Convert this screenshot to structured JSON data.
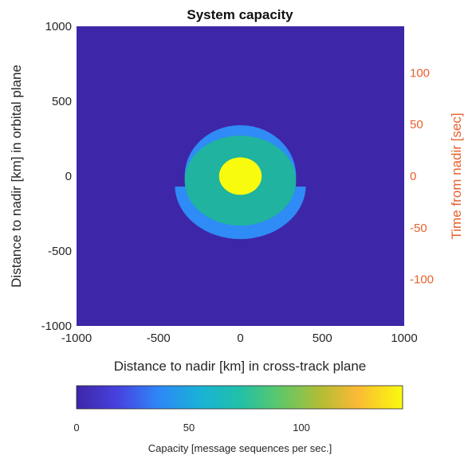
{
  "chart_data": {
    "type": "heatmap",
    "title": "System capacity",
    "xlabel": "Distance to nadir [km] in cross-track plane",
    "ylabel": "Distance to nadir [km] in orbital plane",
    "y2label": "Time from nadir [sec]",
    "xlim": [
      -1000,
      1000
    ],
    "ylim": [
      -1000,
      1000
    ],
    "y2lim": [
      -145,
      145
    ],
    "x_ticks": [
      -1000,
      -500,
      0,
      500,
      1000
    ],
    "x_tick_labels": [
      "-1000",
      "-500",
      "0",
      "500",
      "1000"
    ],
    "y_ticks": [
      -1000,
      -500,
      0,
      500,
      1000
    ],
    "y_tick_labels": [
      "-1000",
      "-500",
      "0",
      "500",
      "1000"
    ],
    "y2_ticks": [
      -100,
      -50,
      0,
      50,
      100
    ],
    "y2_tick_labels": [
      "-100",
      "-50",
      "0",
      "50",
      "100"
    ],
    "grid": false,
    "colorbar": {
      "label": "Capacity [message sequences per sec.]",
      "placement": "bottom",
      "range": [
        0,
        145
      ],
      "ticks": [
        0,
        50,
        100
      ],
      "tick_labels": [
        "0",
        "50",
        "100"
      ],
      "colormap": "parula"
    },
    "regions": [
      {
        "name": "outer coverage region",
        "value": 25,
        "shape": "capped-ellipse",
        "center": [
          0,
          -80
        ],
        "rx": 400,
        "ry": 360,
        "cap_center": [
          0,
          0
        ],
        "cap_r": 340,
        "flat_cut_y": -70
      },
      {
        "name": "middle region",
        "value": 70,
        "shape": "ellipse",
        "center": [
          0,
          -30
        ],
        "rx": 340,
        "ry": 300
      },
      {
        "name": "inner region",
        "value": 145,
        "shape": "ellipse",
        "center": [
          0,
          0
        ],
        "rx": 130,
        "ry": 125
      }
    ],
    "background_value": 0
  },
  "colors": {
    "background": "#3e26a8",
    "outer": "#2f8bf5",
    "middle": "#1fb3a0",
    "inner": "#f9fb0e",
    "right_axis": "#e8602c"
  }
}
